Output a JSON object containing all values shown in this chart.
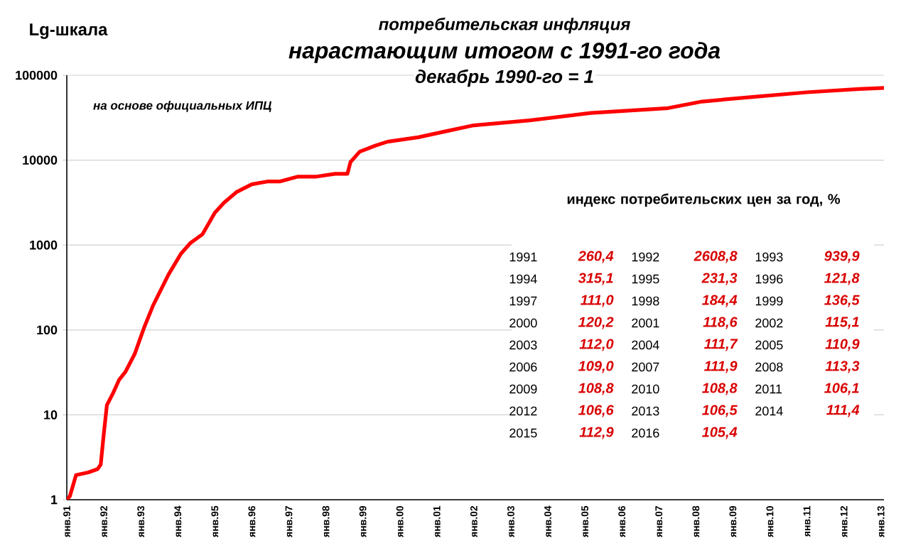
{
  "chart_data": {
    "type": "line",
    "title": "потребительская  инфляция",
    "subtitle": "нарастающим итогом с 1991-го года",
    "ylabel": "Lg-шкала",
    "x": [
      "1991-01",
      "1991-02",
      "1991-04",
      "1991-08",
      "1991-11",
      "1991-12",
      "1992-01",
      "1992-02",
      "1992-04",
      "1992-06",
      "1992-08",
      "1992-11",
      "1993-02",
      "1993-05",
      "1993-10",
      "1994-02",
      "1994-05",
      "1994-09",
      "1995-01",
      "1995-04",
      "1995-08",
      "1996-01",
      "1996-06",
      "1996-10",
      "1997-04",
      "1997-10",
      "1998-04",
      "1998-08",
      "1998-09",
      "1998-12",
      "1999-05",
      "1999-09",
      "2000-07",
      "2001-04",
      "2002-01",
      "2003-07",
      "2005-03",
      "2007-04",
      "2008-03",
      "2009-06",
      "2011-01",
      "2012-06",
      "2013-02"
    ],
    "series": [
      {
        "color": "#ff0000",
        "values": [
          1,
          1.1,
          1.95,
          2.1,
          2.3,
          2.6,
          6,
          13,
          18,
          26,
          32,
          52,
          105,
          195,
          450,
          790,
          1050,
          1340,
          2400,
          3160,
          4200,
          5200,
          5600,
          5600,
          6400,
          6400,
          6900,
          6900,
          9500,
          12600,
          14800,
          16500,
          18600,
          21900,
          25700,
          29400,
          36000,
          41000,
          49000,
          55000,
          63000,
          69000,
          71000
        ]
      }
    ],
    "xlim": [
      "1991-01",
      "2013-02"
    ],
    "xticks": [
      {
        "value": "1991-01",
        "label": "янв.91"
      },
      {
        "value": "1992-01",
        "label": "янв.92"
      },
      {
        "value": "1993-01",
        "label": "янв.93"
      },
      {
        "value": "1994-01",
        "label": "янв.94"
      },
      {
        "value": "1995-01",
        "label": "янв.95"
      },
      {
        "value": "1996-01",
        "label": "янв.96"
      },
      {
        "value": "1997-01",
        "label": "янв.97"
      },
      {
        "value": "1998-01",
        "label": "янв.98"
      },
      {
        "value": "1999-01",
        "label": "янв.99"
      },
      {
        "value": "2000-01",
        "label": "янв.00"
      },
      {
        "value": "2001-01",
        "label": "янв.01"
      },
      {
        "value": "2002-01",
        "label": "янв.02"
      },
      {
        "value": "2003-01",
        "label": "янв.03"
      },
      {
        "value": "2004-01",
        "label": "янв.04"
      },
      {
        "value": "2005-01",
        "label": "янв.05"
      },
      {
        "value": "2006-01",
        "label": "янв.06"
      },
      {
        "value": "2007-01",
        "label": "янв.07"
      },
      {
        "value": "2008-01",
        "label": "янв.08"
      },
      {
        "value": "2009-01",
        "label": "янв.09"
      },
      {
        "value": "2010-01",
        "label": "янв.10"
      },
      {
        "value": "2011-01",
        "label": "янв.11"
      },
      {
        "value": "2012-01",
        "label": "янв.12"
      },
      {
        "value": "2013-01",
        "label": "янв.13"
      }
    ],
    "ylim": [
      1,
      100000
    ],
    "yticks": [
      1,
      10,
      100,
      1000,
      10000,
      100000
    ],
    "log": "y",
    "grid": "y",
    "annotations": [
      "декабрь 1990-го = 1",
      "на основе официальных ИПЦ",
      "индекс потребительских цен за год, %",
      "1991",
      "260,4",
      "1992",
      "2608,8",
      "1993",
      "939,9",
      "1994",
      "315,1",
      "1995",
      "231,3",
      "1996",
      "121,8",
      "1997",
      "111,0",
      "1998",
      "184,4",
      "1999",
      "136,5",
      "2000",
      "120,2",
      "2001",
      "118,6",
      "2002",
      "115,1",
      "2003",
      "112,0",
      "2004",
      "111,7",
      "2005",
      "110,9",
      "2006",
      "109,0",
      "2007",
      "111,9",
      "2008",
      "113,3",
      "2009",
      "108,8",
      "2010",
      "108,8",
      "2011",
      "106,1",
      "2012",
      "106,6",
      "2013",
      "106,5",
      "2014",
      "111,4",
      "2015",
      "112,9",
      "2016",
      "105,4"
    ]
  }
}
